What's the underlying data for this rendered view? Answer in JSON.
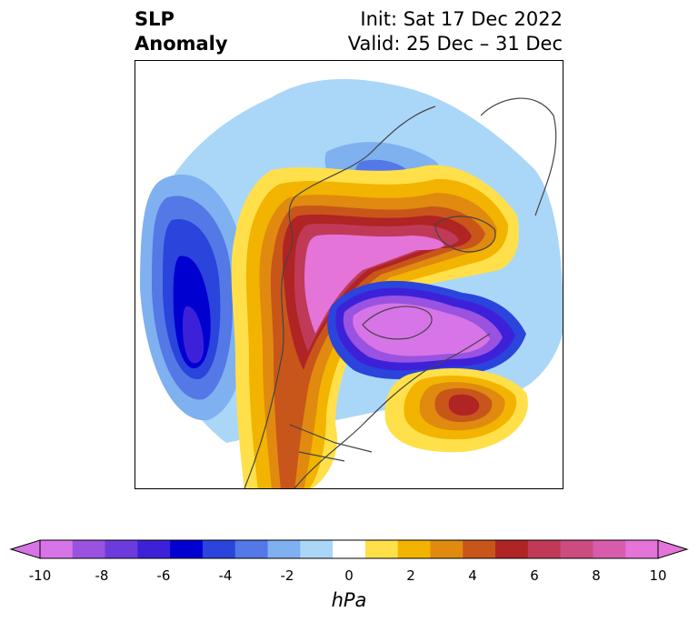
{
  "title": {
    "variable_line1": "SLP",
    "variable_line2": "Anomaly",
    "init": "Init: Sat 17 Dec 2022",
    "valid": "Valid: 25 Dec – 31 Dec"
  },
  "colorbar": {
    "unit": "hPa",
    "tick_labels": [
      "-10",
      "-8",
      "-6",
      "-4",
      "-2",
      "0",
      "2",
      "4",
      "6",
      "8",
      "10"
    ],
    "levels": [
      -10,
      -9,
      -8,
      -7,
      -6,
      -5,
      -4,
      -3,
      -2,
      -1,
      1,
      2,
      3,
      4,
      5,
      6,
      7,
      8,
      9,
      10
    ],
    "colors": [
      "#d774e8",
      "#9a52e0",
      "#6c3bdb",
      "#3d21d9",
      "#0000d0",
      "#2a44dc",
      "#5478e6",
      "#7fb0f0",
      "#aad7f8",
      "#ffffff",
      "#ffe04a",
      "#f2b400",
      "#e08a10",
      "#c8561a",
      "#b02424",
      "#c03a58",
      "#cc4c80",
      "#d85cac",
      "#e474d8"
    ],
    "extend": "both"
  },
  "map": {
    "projection": "north-polar stereographic",
    "region": "North America / Arctic / North Pacific / North Atlantic"
  }
}
